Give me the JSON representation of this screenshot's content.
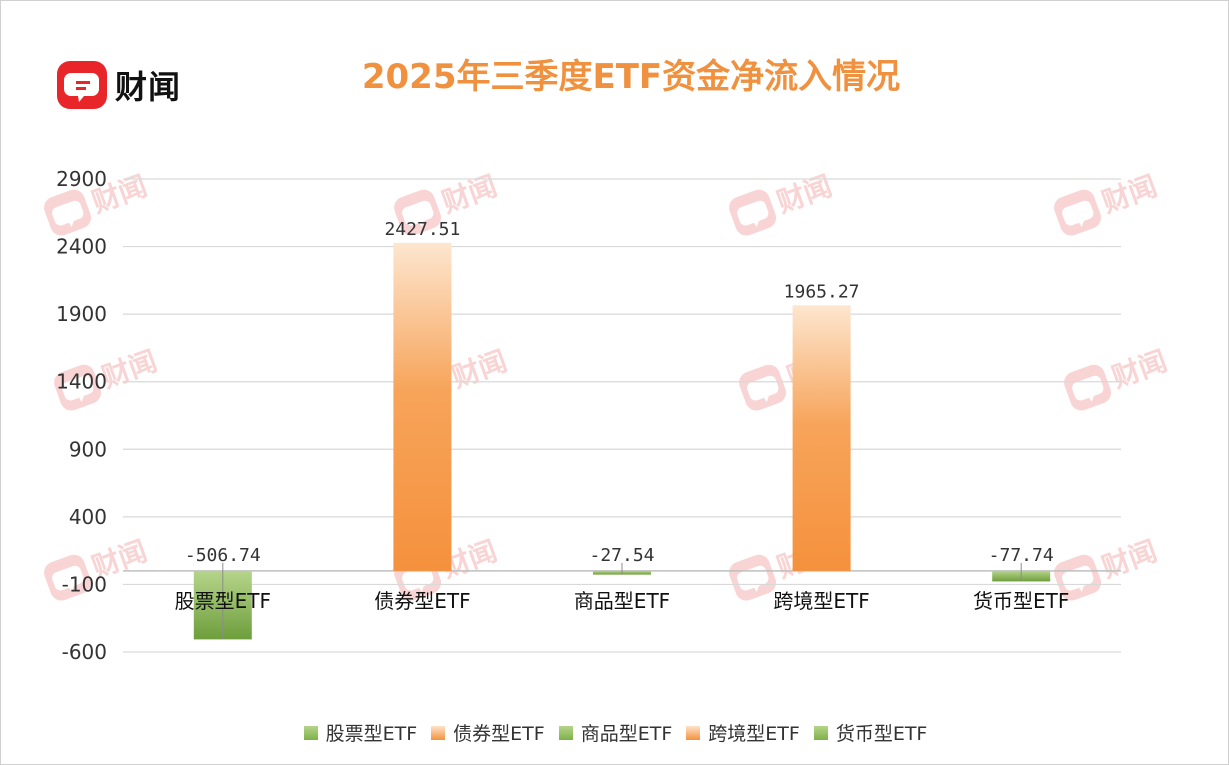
{
  "brand": {
    "name": "财闻"
  },
  "chart_data": {
    "type": "bar",
    "title": "2025年三季度ETF资金净流入情况",
    "categories": [
      "股票型ETF",
      "债券型ETF",
      "商品型ETF",
      "跨境型ETF",
      "货币型ETF"
    ],
    "values": [
      -506.74,
      2427.51,
      -27.54,
      1965.27,
      -77.74
    ],
    "value_labels": [
      "-506.74",
      "2427.51",
      "-27.54",
      "1965.27",
      "-77.74"
    ],
    "colors": [
      "green",
      "orange",
      "green",
      "orange",
      "green"
    ],
    "palette": {
      "green": "#7FB04A",
      "green_light": "#B5D58A",
      "orange": "#F5913D",
      "orange_light": "#FDE3C9"
    },
    "y_ticks": [
      2900,
      2400,
      1900,
      1400,
      900,
      400,
      -100,
      -600
    ],
    "y_tick_labels": [
      "2900",
      "2400",
      "1900",
      "1400",
      "900",
      "400",
      "-100",
      "-600"
    ],
    "ylim": [
      -600,
      2900
    ],
    "grid": true,
    "legend_position": "bottom"
  }
}
